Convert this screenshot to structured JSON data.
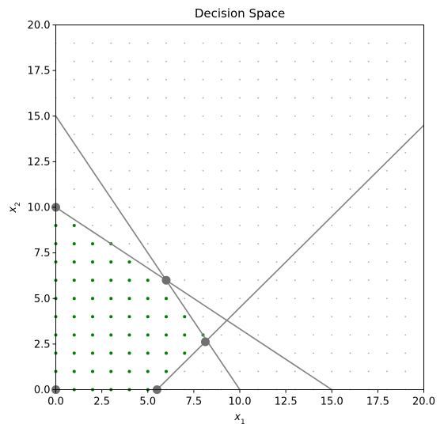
{
  "chart_data": {
    "type": "scatter",
    "title": "Decision Space",
    "xlabel": {
      "base": "x",
      "sub": "1"
    },
    "ylabel": {
      "base": "x",
      "sub": "2"
    },
    "xlim": [
      0,
      20
    ],
    "ylim": [
      0,
      20
    ],
    "xticks": [
      "0.0",
      "2.5",
      "5.0",
      "7.5",
      "10.0",
      "12.5",
      "15.0",
      "17.5",
      "20.0"
    ],
    "yticks": [
      "0.0",
      "2.5",
      "5.0",
      "7.5",
      "10.0",
      "12.5",
      "15.0",
      "17.5",
      "20.0"
    ],
    "grid": false,
    "background_lattice": {
      "x_range": [
        0,
        19
      ],
      "y_range": [
        0,
        19
      ],
      "step": 1,
      "color": "#aaaaaa"
    },
    "constraint_lines": [
      {
        "points": [
          [
            0,
            15
          ],
          [
            10,
            0
          ]
        ],
        "color": "#808080"
      },
      {
        "points": [
          [
            0,
            10
          ],
          [
            15,
            0
          ]
        ],
        "color": "#808080"
      },
      {
        "points": [
          [
            5.5,
            0
          ],
          [
            20,
            14.5
          ]
        ],
        "color": "#808080"
      }
    ],
    "feasible_integer_points": {
      "color": "#008000",
      "points": [
        [
          0,
          0
        ],
        [
          1,
          0
        ],
        [
          2,
          0
        ],
        [
          3,
          0
        ],
        [
          4,
          0
        ],
        [
          5,
          0
        ],
        [
          0,
          1
        ],
        [
          1,
          1
        ],
        [
          2,
          1
        ],
        [
          3,
          1
        ],
        [
          4,
          1
        ],
        [
          5,
          1
        ],
        [
          6,
          1
        ],
        [
          0,
          2
        ],
        [
          1,
          2
        ],
        [
          2,
          2
        ],
        [
          3,
          2
        ],
        [
          4,
          2
        ],
        [
          5,
          2
        ],
        [
          6,
          2
        ],
        [
          7,
          2
        ],
        [
          0,
          3
        ],
        [
          1,
          3
        ],
        [
          2,
          3
        ],
        [
          3,
          3
        ],
        [
          4,
          3
        ],
        [
          5,
          3
        ],
        [
          6,
          3
        ],
        [
          7,
          3
        ],
        [
          8,
          3
        ],
        [
          0,
          4
        ],
        [
          1,
          4
        ],
        [
          2,
          4
        ],
        [
          3,
          4
        ],
        [
          4,
          4
        ],
        [
          5,
          4
        ],
        [
          6,
          4
        ],
        [
          7,
          4
        ],
        [
          0,
          5
        ],
        [
          1,
          5
        ],
        [
          2,
          5
        ],
        [
          3,
          5
        ],
        [
          4,
          5
        ],
        [
          5,
          5
        ],
        [
          6,
          5
        ],
        [
          0,
          6
        ],
        [
          1,
          6
        ],
        [
          2,
          6
        ],
        [
          3,
          6
        ],
        [
          4,
          6
        ],
        [
          5,
          6
        ],
        [
          6,
          6
        ],
        [
          0,
          7
        ],
        [
          1,
          7
        ],
        [
          2,
          7
        ],
        [
          3,
          7
        ],
        [
          4,
          7
        ],
        [
          0,
          8
        ],
        [
          1,
          8
        ],
        [
          2,
          8
        ],
        [
          3,
          8
        ],
        [
          0,
          9
        ],
        [
          1,
          9
        ]
      ]
    },
    "vertices": {
      "color": "#707070",
      "points": [
        [
          0,
          0
        ],
        [
          5.5,
          0
        ],
        [
          8.125,
          2.625
        ],
        [
          6,
          6
        ],
        [
          0,
          10
        ]
      ]
    }
  }
}
